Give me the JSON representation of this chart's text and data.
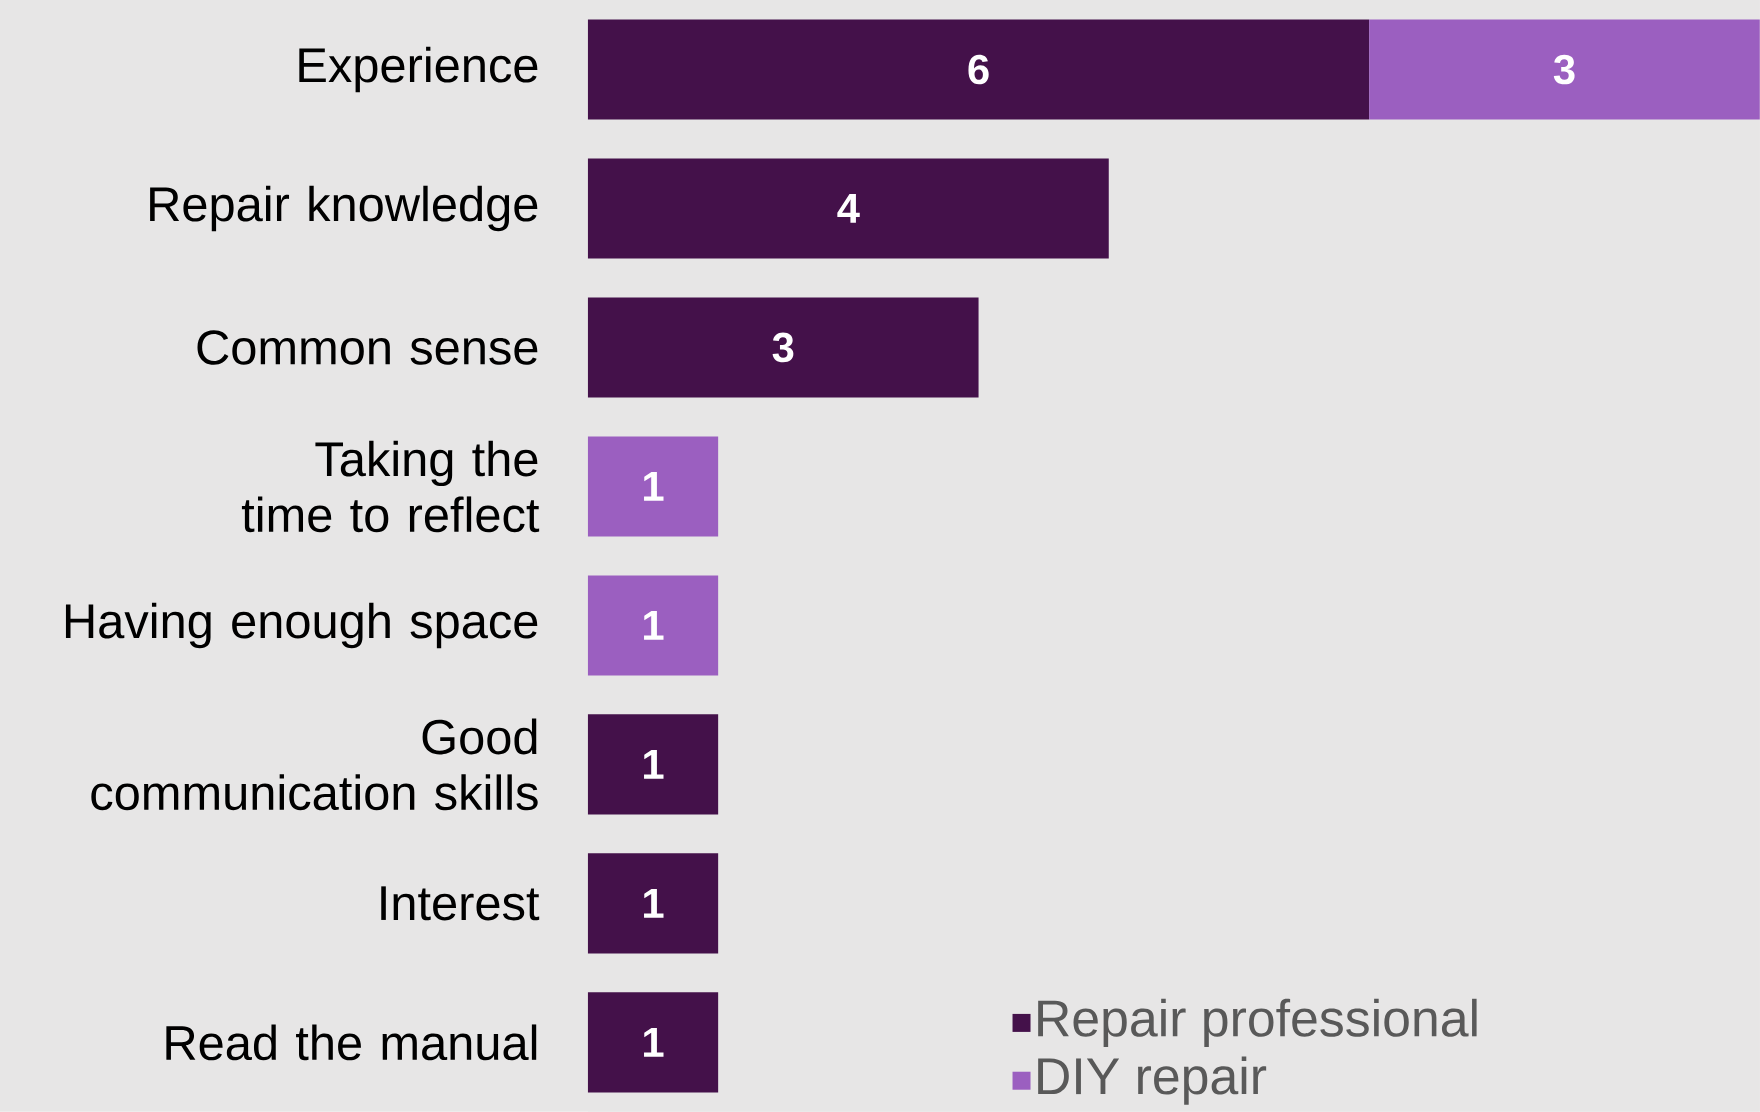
{
  "chart_data": {
    "type": "bar",
    "orientation": "horizontal",
    "stacked": true,
    "data_labels": true,
    "legend": "bottom right",
    "categories": [
      "Experience",
      "Repair knowledge",
      "Common sense",
      "Taking the time to reflect",
      "Having enough space",
      "Good communication skills",
      "Interest",
      "Read the manual"
    ],
    "series": [
      {
        "name": "Repair professional",
        "color": "#44114a",
        "values": [
          6,
          4,
          3,
          null,
          null,
          1,
          1,
          1
        ]
      },
      {
        "name": "DIY repair",
        "color": "#9b5fc0",
        "values": [
          3,
          null,
          null,
          1,
          1,
          null,
          null,
          null
        ]
      }
    ]
  }
}
